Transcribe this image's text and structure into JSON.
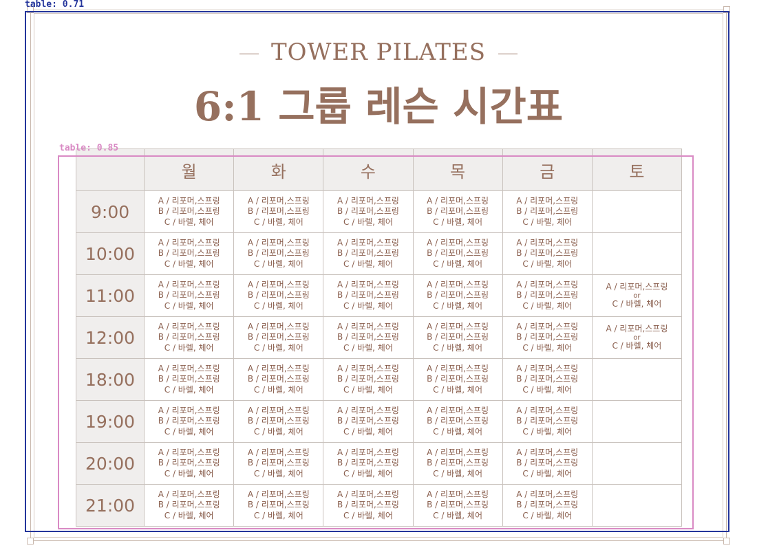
{
  "detections": {
    "outer_label": "table: 0.71",
    "inner_label": "table: 0.85"
  },
  "header": {
    "brand": "TOWER PILATES",
    "title": "6:1 그룹 레슨 시간표"
  },
  "schedule": {
    "days": [
      "월",
      "화",
      "수",
      "목",
      "금",
      "토"
    ],
    "times": [
      "9:00",
      "10:00",
      "11:00",
      "12:00",
      "18:00",
      "19:00",
      "20:00",
      "21:00"
    ],
    "weekday_class": {
      "line_a": "A / 리포머,스프링",
      "line_b": "B / 리포머,스프링",
      "line_c": "C / 바렐, 체어"
    },
    "saturday_class": {
      "line_a": "A / 리포머,스프링",
      "line_or": "or",
      "line_c": "C / 바렐, 체어"
    },
    "saturday_times": [
      "11:00",
      "12:00"
    ]
  },
  "colors": {
    "accent": "#96705e",
    "header_bg": "#f0eeed",
    "border": "#c9c2bd",
    "detection_outer": "#24359b",
    "detection_inner": "#d98ac4"
  }
}
